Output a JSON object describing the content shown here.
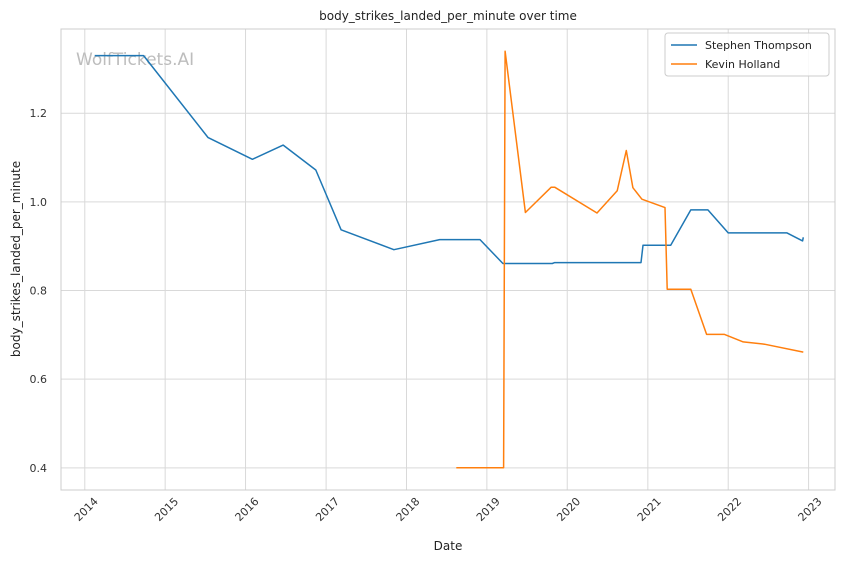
{
  "chart_data": {
    "type": "line",
    "title": "body_strikes_landed_per_minute over time",
    "xlabel": "Date",
    "ylabel": "body_strikes_landed_per_minute",
    "watermark": "WolfTickets.AI",
    "x_ticks": [
      "2014",
      "2015",
      "2016",
      "2017",
      "2018",
      "2019",
      "2020",
      "2021",
      "2022",
      "2023"
    ],
    "y_ticks": [
      "0.4",
      "0.6",
      "0.8",
      "1.0",
      "1.2"
    ],
    "xlim": [
      "2013-09-15",
      "2023-05-01"
    ],
    "ylim": [
      0.35,
      1.39
    ],
    "grid": true,
    "legend_position": "top-right",
    "colors": {
      "series_1": "#1f77b4",
      "series_2": "#ff7f0e",
      "grid": "#d9d9d9",
      "frame": "#cccccc"
    },
    "series": [
      {
        "name": "Stephen Thompson",
        "points": [
          [
            "2014-02-15",
            1.33
          ],
          [
            "2014-09-25",
            1.33
          ],
          [
            "2015-07-15",
            1.145
          ],
          [
            "2016-02-01",
            1.096
          ],
          [
            "2016-06-20",
            1.128
          ],
          [
            "2016-11-15",
            1.072
          ],
          [
            "2017-03-10",
            0.937
          ],
          [
            "2017-11-05",
            0.892
          ],
          [
            "2018-06-01",
            0.915
          ],
          [
            "2018-12-01",
            0.915
          ],
          [
            "2019-03-15",
            0.861
          ],
          [
            "2019-10-25",
            0.861
          ],
          [
            "2019-11-05",
            0.863
          ],
          [
            "2020-12-01",
            0.863
          ],
          [
            "2020-12-10",
            0.902
          ],
          [
            "2021-04-15",
            0.902
          ],
          [
            "2021-07-15",
            0.982
          ],
          [
            "2021-10-01",
            0.982
          ],
          [
            "2022-01-01",
            0.93
          ],
          [
            "2022-09-25",
            0.93
          ],
          [
            "2022-12-05",
            0.912
          ],
          [
            "2022-12-08",
            0.92
          ]
        ]
      },
      {
        "name": "Kevin Holland",
        "points": [
          [
            "2018-08-15",
            0.4
          ],
          [
            "2019-03-18",
            0.4
          ],
          [
            "2019-03-25",
            1.34
          ],
          [
            "2019-06-25",
            0.976
          ],
          [
            "2019-10-20",
            1.033
          ],
          [
            "2019-11-05",
            1.033
          ],
          [
            "2020-05-15",
            0.975
          ],
          [
            "2020-08-15",
            1.025
          ],
          [
            "2020-09-25",
            1.116
          ],
          [
            "2020-10-25",
            1.032
          ],
          [
            "2020-12-05",
            1.006
          ],
          [
            "2021-03-20",
            0.987
          ],
          [
            "2021-03-30",
            0.803
          ],
          [
            "2021-07-15",
            0.803
          ],
          [
            "2021-09-25",
            0.701
          ],
          [
            "2021-12-15",
            0.701
          ],
          [
            "2022-03-10",
            0.684
          ],
          [
            "2022-06-15",
            0.679
          ],
          [
            "2022-12-08",
            0.661
          ]
        ]
      }
    ]
  }
}
